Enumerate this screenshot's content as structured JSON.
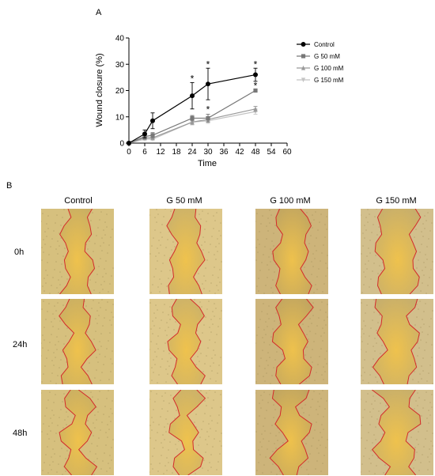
{
  "panel_a_label": "A",
  "panel_b_label": "B",
  "chart_data": {
    "type": "line",
    "xlabel": "Time",
    "ylabel": "Wound closure (%)",
    "xlim": [
      0,
      60
    ],
    "ylim": [
      0,
      40
    ],
    "xticks": [
      0,
      6,
      12,
      18,
      24,
      30,
      36,
      42,
      48,
      54,
      60
    ],
    "yticks": [
      0,
      10,
      20,
      30,
      40
    ],
    "legend_position": "right",
    "series": [
      {
        "name": "Control",
        "color": "#000000",
        "marker": "circle",
        "x": [
          0,
          6,
          9,
          24,
          30,
          48
        ],
        "y": [
          0,
          3.5,
          8.5,
          18,
          22.5,
          26
        ],
        "err": [
          0,
          1.5,
          3,
          5,
          6,
          2.5
        ]
      },
      {
        "name": "G 50 mM",
        "color": "#777777",
        "marker": "square",
        "x": [
          0,
          6,
          9,
          24,
          30,
          48
        ],
        "y": [
          0,
          2.5,
          3,
          9.5,
          9.5,
          20
        ],
        "err": [
          0,
          1,
          1,
          1,
          1.5,
          0
        ]
      },
      {
        "name": "G 100 mM",
        "color": "#999999",
        "marker": "triangle-up",
        "x": [
          0,
          6,
          9,
          24,
          30,
          48
        ],
        "y": [
          0,
          2,
          2,
          8,
          9,
          13
        ],
        "err": [
          0,
          0.5,
          0.5,
          1,
          1,
          1
        ]
      },
      {
        "name": "G 150 mM",
        "color": "#c4c4c4",
        "marker": "triangle-down",
        "x": [
          0,
          6,
          9,
          24,
          30,
          48
        ],
        "y": [
          0,
          1.5,
          1.5,
          8,
          8.5,
          12
        ],
        "err": [
          0,
          0.5,
          0.5,
          1,
          1,
          1
        ]
      }
    ],
    "annotations": [
      {
        "x": 24,
        "text": "*"
      },
      {
        "x": 30,
        "text": "*"
      },
      {
        "x": 48,
        "text": "*"
      },
      {
        "x": 30,
        "text": "*"
      },
      {
        "x": 48,
        "text": "*"
      }
    ]
  },
  "micrographs": {
    "columns": [
      "Control",
      "G 50 mM",
      "G 100 mM",
      "G 150 mM"
    ],
    "rows": [
      "0h",
      "24h",
      "48h"
    ]
  }
}
